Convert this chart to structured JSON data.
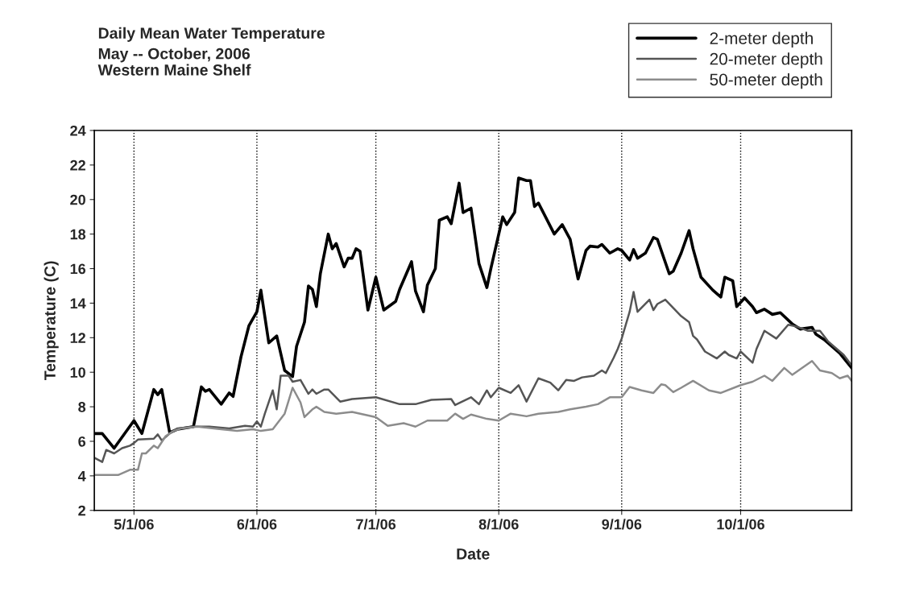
{
  "chart_data": {
    "type": "line",
    "title": "Daily Mean Water Temperature",
    "subtitle": "May -- October, 2006\nWestern Maine Shelf",
    "xlabel": "Date",
    "ylabel": "Temperature (C)",
    "xlim": [
      "2006-04-21",
      "2006-10-29"
    ],
    "xticks": [
      {
        "value": "2006-05-01",
        "label": "5/1/06"
      },
      {
        "value": "2006-06-01",
        "label": "6/1/06"
      },
      {
        "value": "2006-07-01",
        "label": "7/1/06"
      },
      {
        "value": "2006-08-01",
        "label": "8/1/06"
      },
      {
        "value": "2006-09-01",
        "label": "9/1/06"
      },
      {
        "value": "2006-10-01",
        "label": "10/1/06"
      }
    ],
    "ylim": [
      2,
      24
    ],
    "yticks": [
      2,
      4,
      6,
      8,
      10,
      12,
      14,
      16,
      18,
      20,
      22,
      24
    ],
    "grid": "x",
    "legend": "top right",
    "marker": "none",
    "line_style": "solid",
    "series": [
      {
        "name": "2-meter depth",
        "color": "#000000",
        "x": [
          "2006-04-21",
          "2006-04-23",
          "2006-04-26",
          "2006-05-01",
          "2006-05-03",
          "2006-05-06",
          "2006-05-07",
          "2006-05-08",
          "2006-05-10",
          "2006-05-12",
          "2006-05-16",
          "2006-05-18",
          "2006-05-19",
          "2006-05-20",
          "2006-05-23",
          "2006-05-25",
          "2006-05-26",
          "2006-05-28",
          "2006-05-30",
          "2006-06-01",
          "2006-06-02",
          "2006-06-04",
          "2006-06-06",
          "2006-06-08",
          "2006-06-10",
          "2006-06-11",
          "2006-06-13",
          "2006-06-14",
          "2006-06-15",
          "2006-06-16",
          "2006-06-17",
          "2006-06-19",
          "2006-06-20",
          "2006-06-21",
          "2006-06-23",
          "2006-06-24",
          "2006-06-25",
          "2006-06-26",
          "2006-06-27",
          "2006-06-29",
          "2006-07-01",
          "2006-07-03",
          "2006-07-06",
          "2006-07-07",
          "2006-07-10",
          "2006-07-11",
          "2006-07-13",
          "2006-07-14",
          "2006-07-16",
          "2006-07-17",
          "2006-07-19",
          "2006-07-20",
          "2006-07-22",
          "2006-07-23",
          "2006-07-25",
          "2006-07-27",
          "2006-07-29",
          "2006-07-30",
          "2006-08-02",
          "2006-08-03",
          "2006-08-05",
          "2006-08-06",
          "2006-08-08",
          "2006-08-09",
          "2006-08-10",
          "2006-08-11",
          "2006-08-15",
          "2006-08-17",
          "2006-08-19",
          "2006-08-21",
          "2006-08-23",
          "2006-08-24",
          "2006-08-26",
          "2006-08-27",
          "2006-08-29",
          "2006-08-31",
          "2006-09-01",
          "2006-09-03",
          "2006-09-04",
          "2006-09-05",
          "2006-09-07",
          "2006-09-09",
          "2006-09-10",
          "2006-09-13",
          "2006-09-14",
          "2006-09-16",
          "2006-09-18",
          "2006-09-19",
          "2006-09-21",
          "2006-09-24",
          "2006-09-26",
          "2006-09-27",
          "2006-09-29",
          "2006-09-30",
          "2006-10-02",
          "2006-10-04",
          "2006-10-05",
          "2006-10-07",
          "2006-10-09",
          "2006-10-11",
          "2006-10-14",
          "2006-10-16",
          "2006-10-19",
          "2006-10-20",
          "2006-10-22",
          "2006-10-26",
          "2006-10-29"
        ],
        "values": [
          6.45,
          6.45,
          5.6,
          7.2,
          6.45,
          9.0,
          8.7,
          9.0,
          6.5,
          6.7,
          6.85,
          9.15,
          8.9,
          9.0,
          8.15,
          8.8,
          8.6,
          10.9,
          12.7,
          13.5,
          14.75,
          11.7,
          12.1,
          10.1,
          9.75,
          11.5,
          12.9,
          15.0,
          14.8,
          13.8,
          15.7,
          18.0,
          17.15,
          17.45,
          16.1,
          16.6,
          16.6,
          17.15,
          17.0,
          13.6,
          15.5,
          13.6,
          14.1,
          14.8,
          16.4,
          14.7,
          13.5,
          15.05,
          16.0,
          18.8,
          19.0,
          18.6,
          20.95,
          19.25,
          19.5,
          16.3,
          14.9,
          16.0,
          19.0,
          18.55,
          19.25,
          21.25,
          21.1,
          21.1,
          19.6,
          19.8,
          18.0,
          18.55,
          17.7,
          15.4,
          17.05,
          17.3,
          17.25,
          17.4,
          16.9,
          17.15,
          17.05,
          16.5,
          17.1,
          16.6,
          16.9,
          17.8,
          17.7,
          15.7,
          15.85,
          16.9,
          18.2,
          17.15,
          15.5,
          14.75,
          14.35,
          15.5,
          15.3,
          13.8,
          14.3,
          13.8,
          13.45,
          13.65,
          13.35,
          13.45,
          12.8,
          12.5,
          12.6,
          12.2,
          11.9,
          11.1,
          10.25
        ]
      },
      {
        "name": "20-meter depth",
        "color": "#555555",
        "x": [
          "2006-04-21",
          "2006-04-23",
          "2006-04-24",
          "2006-04-26",
          "2006-04-28",
          "2006-04-30",
          "2006-05-01",
          "2006-05-02",
          "2006-05-06",
          "2006-05-07",
          "2006-05-08",
          "2006-05-10",
          "2006-05-12",
          "2006-05-16",
          "2006-05-20",
          "2006-05-25",
          "2006-05-29",
          "2006-05-31",
          "2006-06-01",
          "2006-06-02",
          "2006-06-03",
          "2006-06-05",
          "2006-06-06",
          "2006-06-07",
          "2006-06-09",
          "2006-06-10",
          "2006-06-12",
          "2006-06-14",
          "2006-06-15",
          "2006-06-16",
          "2006-06-18",
          "2006-06-19",
          "2006-06-22",
          "2006-06-25",
          "2006-07-01",
          "2006-07-07",
          "2006-07-11",
          "2006-07-15",
          "2006-07-20",
          "2006-07-21",
          "2006-07-25",
          "2006-07-27",
          "2006-07-29",
          "2006-07-30",
          "2006-08-01",
          "2006-08-04",
          "2006-08-06",
          "2006-08-08",
          "2006-08-11",
          "2006-08-14",
          "2006-08-16",
          "2006-08-18",
          "2006-08-20",
          "2006-08-22",
          "2006-08-25",
          "2006-08-27",
          "2006-08-28",
          "2006-08-30",
          "2006-08-31",
          "2006-09-01",
          "2006-09-03",
          "2006-09-04",
          "2006-09-05",
          "2006-09-08",
          "2006-09-09",
          "2006-09-10",
          "2006-09-12",
          "2006-09-16",
          "2006-09-18",
          "2006-09-19",
          "2006-09-20",
          "2006-09-22",
          "2006-09-25",
          "2006-09-27",
          "2006-09-28",
          "2006-09-30",
          "2006-10-01",
          "2006-10-04",
          "2006-10-05",
          "2006-10-07",
          "2006-10-10",
          "2006-10-13",
          "2006-10-15",
          "2006-10-18",
          "2006-10-21",
          "2006-10-23",
          "2006-10-27",
          "2006-10-29"
        ],
        "values": [
          5.05,
          4.8,
          5.5,
          5.3,
          5.6,
          5.75,
          5.9,
          6.1,
          6.15,
          6.4,
          6.05,
          6.45,
          6.75,
          6.85,
          6.85,
          6.75,
          6.9,
          6.85,
          7.15,
          6.85,
          7.6,
          8.95,
          7.85,
          9.8,
          9.8,
          9.45,
          9.55,
          8.75,
          9.0,
          8.75,
          9.0,
          9.0,
          8.3,
          8.45,
          8.55,
          8.15,
          8.15,
          8.4,
          8.45,
          8.1,
          8.55,
          8.15,
          8.95,
          8.55,
          9.1,
          8.8,
          9.25,
          8.3,
          9.65,
          9.4,
          8.95,
          9.55,
          9.5,
          9.7,
          9.8,
          10.1,
          9.95,
          10.85,
          11.35,
          11.95,
          13.5,
          14.65,
          13.5,
          14.2,
          13.6,
          13.95,
          14.2,
          13.25,
          12.9,
          12.1,
          11.9,
          11.2,
          10.8,
          11.2,
          11.0,
          10.8,
          11.2,
          10.55,
          11.35,
          12.4,
          11.95,
          12.75,
          12.65,
          12.4,
          12.4,
          11.8,
          11.0,
          10.4
        ]
      },
      {
        "name": "50-meter depth",
        "color": "#8c8c8c",
        "x": [
          "2006-04-21",
          "2006-04-27",
          "2006-04-30",
          "2006-05-02",
          "2006-05-03",
          "2006-05-04",
          "2006-05-06",
          "2006-05-07",
          "2006-05-09",
          "2006-05-11",
          "2006-05-13",
          "2006-05-17",
          "2006-05-23",
          "2006-05-27",
          "2006-05-31",
          "2006-06-02",
          "2006-06-05",
          "2006-06-08",
          "2006-06-10",
          "2006-06-12",
          "2006-06-13",
          "2006-06-15",
          "2006-06-16",
          "2006-06-18",
          "2006-06-21",
          "2006-06-25",
          "2006-06-28",
          "2006-07-01",
          "2006-07-04",
          "2006-07-08",
          "2006-07-11",
          "2006-07-14",
          "2006-07-19",
          "2006-07-21",
          "2006-07-23",
          "2006-07-25",
          "2006-07-29",
          "2006-08-01",
          "2006-08-04",
          "2006-08-08",
          "2006-08-11",
          "2006-08-16",
          "2006-08-19",
          "2006-08-23",
          "2006-08-26",
          "2006-08-29",
          "2006-09-01",
          "2006-09-03",
          "2006-09-06",
          "2006-09-09",
          "2006-09-11",
          "2006-09-12",
          "2006-09-14",
          "2006-09-16",
          "2006-09-19",
          "2006-09-23",
          "2006-09-26",
          "2006-10-01",
          "2006-10-04",
          "2006-10-07",
          "2006-10-09",
          "2006-10-12",
          "2006-10-14",
          "2006-10-19",
          "2006-10-21",
          "2006-10-24",
          "2006-10-26",
          "2006-10-28",
          "2006-10-29"
        ],
        "values": [
          4.05,
          4.05,
          4.35,
          4.35,
          5.3,
          5.3,
          5.75,
          5.6,
          6.3,
          6.6,
          6.75,
          6.85,
          6.7,
          6.6,
          6.7,
          6.6,
          6.7,
          7.6,
          9.1,
          8.25,
          7.4,
          7.85,
          8.0,
          7.7,
          7.6,
          7.7,
          7.55,
          7.4,
          6.9,
          7.05,
          6.85,
          7.2,
          7.2,
          7.6,
          7.3,
          7.55,
          7.3,
          7.2,
          7.6,
          7.45,
          7.6,
          7.7,
          7.85,
          8.0,
          8.15,
          8.55,
          8.55,
          9.15,
          8.95,
          8.8,
          9.3,
          9.25,
          8.85,
          9.1,
          9.5,
          8.95,
          8.8,
          9.25,
          9.45,
          9.8,
          9.5,
          10.25,
          9.85,
          10.65,
          10.1,
          9.95,
          9.65,
          9.8,
          9.5
        ]
      }
    ]
  }
}
